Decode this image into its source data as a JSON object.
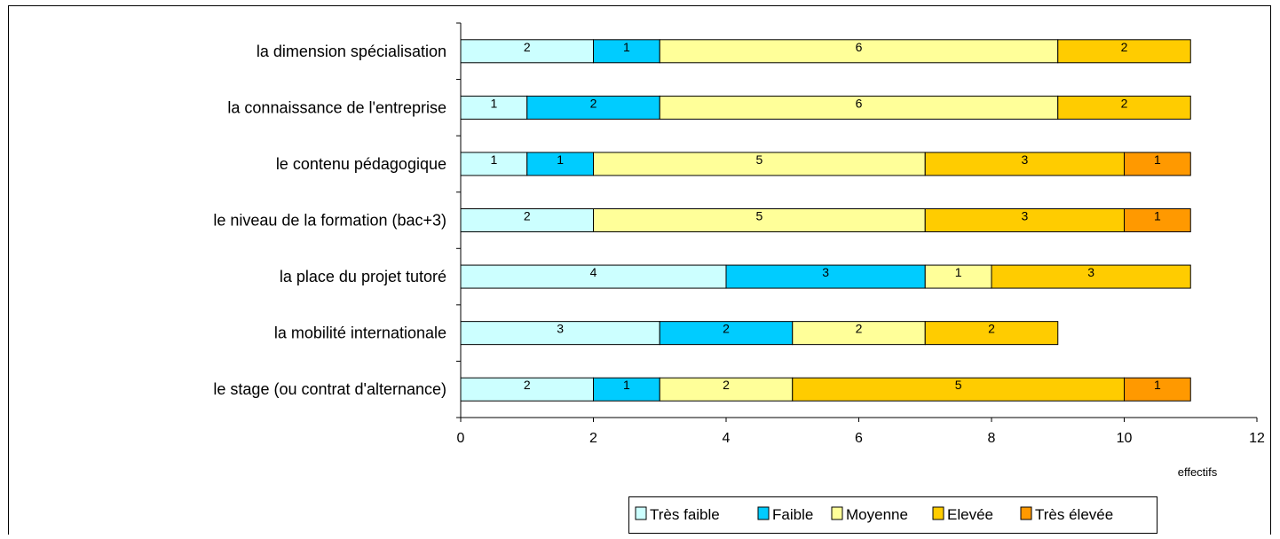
{
  "chart_data": {
    "type": "bar",
    "orientation": "horizontal",
    "stacked": true,
    "title": "",
    "xlabel": "effectifs",
    "ylabel": "",
    "xlim": [
      0,
      12
    ],
    "x_ticks": [
      0,
      2,
      4,
      6,
      8,
      10,
      12
    ],
    "grid": false,
    "legend_position": "bottom",
    "categories": [
      "la dimension spécialisation",
      "la connaissance de l'entreprise",
      "le contenu pédagogique",
      "le niveau de la formation (bac+3)",
      "la place du projet tutoré",
      "la mobilité internationale",
      "le stage (ou contrat d'alternance)"
    ],
    "series": [
      {
        "name": "Très faible",
        "color": "#ccffff",
        "values": [
          2,
          1,
          1,
          2,
          4,
          3,
          2
        ]
      },
      {
        "name": "Faible",
        "color": "#00ccff",
        "values": [
          1,
          2,
          1,
          0,
          3,
          2,
          1
        ]
      },
      {
        "name": "Moyenne",
        "color": "#ffff99",
        "values": [
          6,
          6,
          5,
          5,
          1,
          2,
          2
        ]
      },
      {
        "name": "Elevée",
        "color": "#ffcc00",
        "values": [
          2,
          2,
          3,
          3,
          3,
          2,
          5
        ]
      },
      {
        "name": "Très élevée",
        "color": "#ff9900",
        "values": [
          0,
          0,
          1,
          1,
          0,
          0,
          1
        ]
      }
    ]
  }
}
